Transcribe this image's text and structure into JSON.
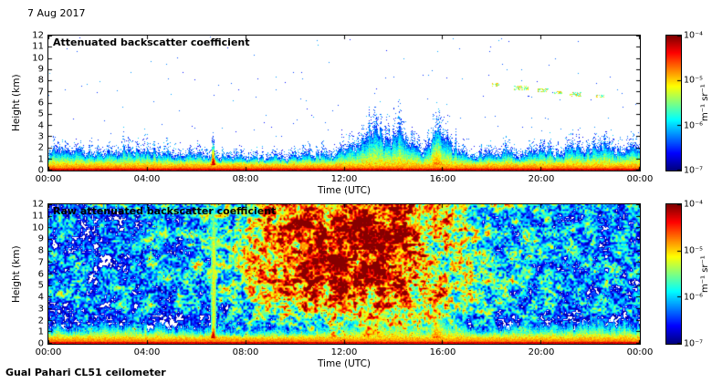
{
  "page": {
    "date_label": "7 Aug 2017",
    "footer_caption": "Gual Pahari CL51 ceilometer"
  },
  "chart_data": [
    {
      "type": "heatmap",
      "title": "Attenuated backscatter coefficient",
      "xlabel": "Time (UTC)",
      "ylabel": "Height (km)",
      "x_range_hours": [
        0,
        24
      ],
      "y_range_km": [
        0,
        12
      ],
      "x_tick_labels": [
        "00:00",
        "04:00",
        "08:00",
        "12:00",
        "16:00",
        "20:00",
        "00:00"
      ],
      "y_tick_labels": [
        "0",
        "1",
        "2",
        "3",
        "4",
        "5",
        "6",
        "7",
        "8",
        "9",
        "10",
        "11",
        "12"
      ],
      "grid": false,
      "colorbar": {
        "tick_labels": [
          "10⁻⁴",
          "10⁻⁵",
          "10⁻⁶",
          "10⁻⁷"
        ],
        "unit_label": "m⁻¹ sr⁻¹",
        "log10_range": [
          -7,
          -4
        ],
        "colormap": "jet"
      },
      "render": {
        "seed": 7,
        "white_below_log10": -6.85,
        "dot_probability": 0.002,
        "surface_layer": {
          "top_km": 0.5
        },
        "speckle_factor": 1.9,
        "boundary_layer": {
          "hours": [
            0,
            1,
            3,
            5,
            6.5,
            8,
            10,
            12,
            12.8,
            13.3,
            13.8,
            14.3,
            14.8,
            15.3,
            15.8,
            16.3,
            17,
            18,
            20,
            22,
            24
          ],
          "top_km": [
            1.7,
            1.5,
            1.7,
            1.4,
            1.2,
            1.1,
            1.2,
            1.6,
            2.6,
            3.3,
            2.4,
            3.1,
            2.2,
            1.6,
            3.4,
            2.4,
            1.3,
            1.4,
            1.6,
            1.8,
            1.7
          ]
        },
        "plumes": [
          {
            "hour": 6.68,
            "width_h": 0.24,
            "top_km": 2.4,
            "boost": 1.0
          },
          {
            "hour": 15.75,
            "width_h": 0.5,
            "top_km": 3.5,
            "boost": 0.35
          }
        ],
        "speckle_columns": [
          {
            "hour": 4.3,
            "width_h": 0.25,
            "top_km": 3.1
          },
          {
            "hour": 4.75,
            "width_h": 0.2,
            "top_km": 3.3
          },
          {
            "hour": 5.1,
            "width_h": 0.15,
            "top_km": 2.9
          }
        ],
        "clouds": [
          {
            "hour": 18.15,
            "width_h": 0.3,
            "base_km": 7.5,
            "depth_km": 0.25
          },
          {
            "hour": 19.2,
            "width_h": 0.6,
            "base_km": 7.1,
            "depth_km": 0.45
          },
          {
            "hour": 20.1,
            "width_h": 0.45,
            "base_km": 7.0,
            "depth_km": 0.3
          },
          {
            "hour": 20.7,
            "width_h": 0.3,
            "base_km": 6.8,
            "depth_km": 0.25
          },
          {
            "hour": 21.4,
            "width_h": 0.5,
            "base_km": 6.6,
            "depth_km": 0.35
          },
          {
            "hour": 22.4,
            "width_h": 0.35,
            "base_km": 6.5,
            "depth_km": 0.25
          }
        ]
      }
    },
    {
      "type": "heatmap",
      "title": "Raw attenuated backscatter coefficient",
      "xlabel": "Time (UTC)",
      "ylabel": "Height (km)",
      "x_range_hours": [
        0,
        24
      ],
      "y_range_km": [
        0,
        12
      ],
      "x_tick_labels": [
        "00:00",
        "04:00",
        "08:00",
        "12:00",
        "16:00",
        "20:00",
        "00:00"
      ],
      "y_tick_labels": [
        "0",
        "1",
        "2",
        "3",
        "4",
        "5",
        "6",
        "7",
        "8",
        "9",
        "10",
        "11",
        "12"
      ],
      "grid": false,
      "colorbar": {
        "tick_labels": [
          "10⁻⁴",
          "10⁻⁵",
          "10⁻⁶",
          "10⁻⁷"
        ],
        "unit_label": "m⁻¹ sr⁻¹",
        "log10_range": [
          -7,
          -4
        ],
        "colormap": "jet"
      },
      "render": {
        "seed": 23,
        "night_log10": -6.3,
        "day_noise": {
          "peak_hour": 12.3,
          "sigma_hours": 3.3,
          "amplitude": 1.5
        },
        "height_gain": {
          "start_km": 0.8,
          "full_km": 5.0
        },
        "surface_layer": {
          "top_km": 0.5
        },
        "boundary_layer": {
          "hours": [
            0,
            1,
            3,
            5,
            6.5,
            8,
            10,
            12,
            12.8,
            13.3,
            13.8,
            14.3,
            14.8,
            15.3,
            15.8,
            16.3,
            17,
            18,
            20,
            22,
            24
          ],
          "top_km": [
            1.7,
            1.5,
            1.7,
            1.4,
            1.2,
            1.1,
            1.2,
            1.6,
            2.6,
            3.3,
            2.4,
            3.1,
            2.2,
            1.6,
            3.4,
            2.4,
            1.3,
            1.4,
            1.6,
            1.8,
            1.7
          ]
        },
        "plumes": [
          {
            "hour": 6.68,
            "width_h": 0.24,
            "top_km": 2.4,
            "boost": 1.0
          },
          {
            "hour": 15.75,
            "width_h": 0.5,
            "top_km": 3.5,
            "boost": 0.35
          }
        ],
        "streaks": [
          {
            "hour": 6.7,
            "width_h": 0.2,
            "top_km": 12,
            "log10_value": -5.1
          },
          {
            "hour": 15.75,
            "width_h": 0.45,
            "top_km": 6,
            "log10_value": -5.5
          }
        ]
      }
    }
  ]
}
